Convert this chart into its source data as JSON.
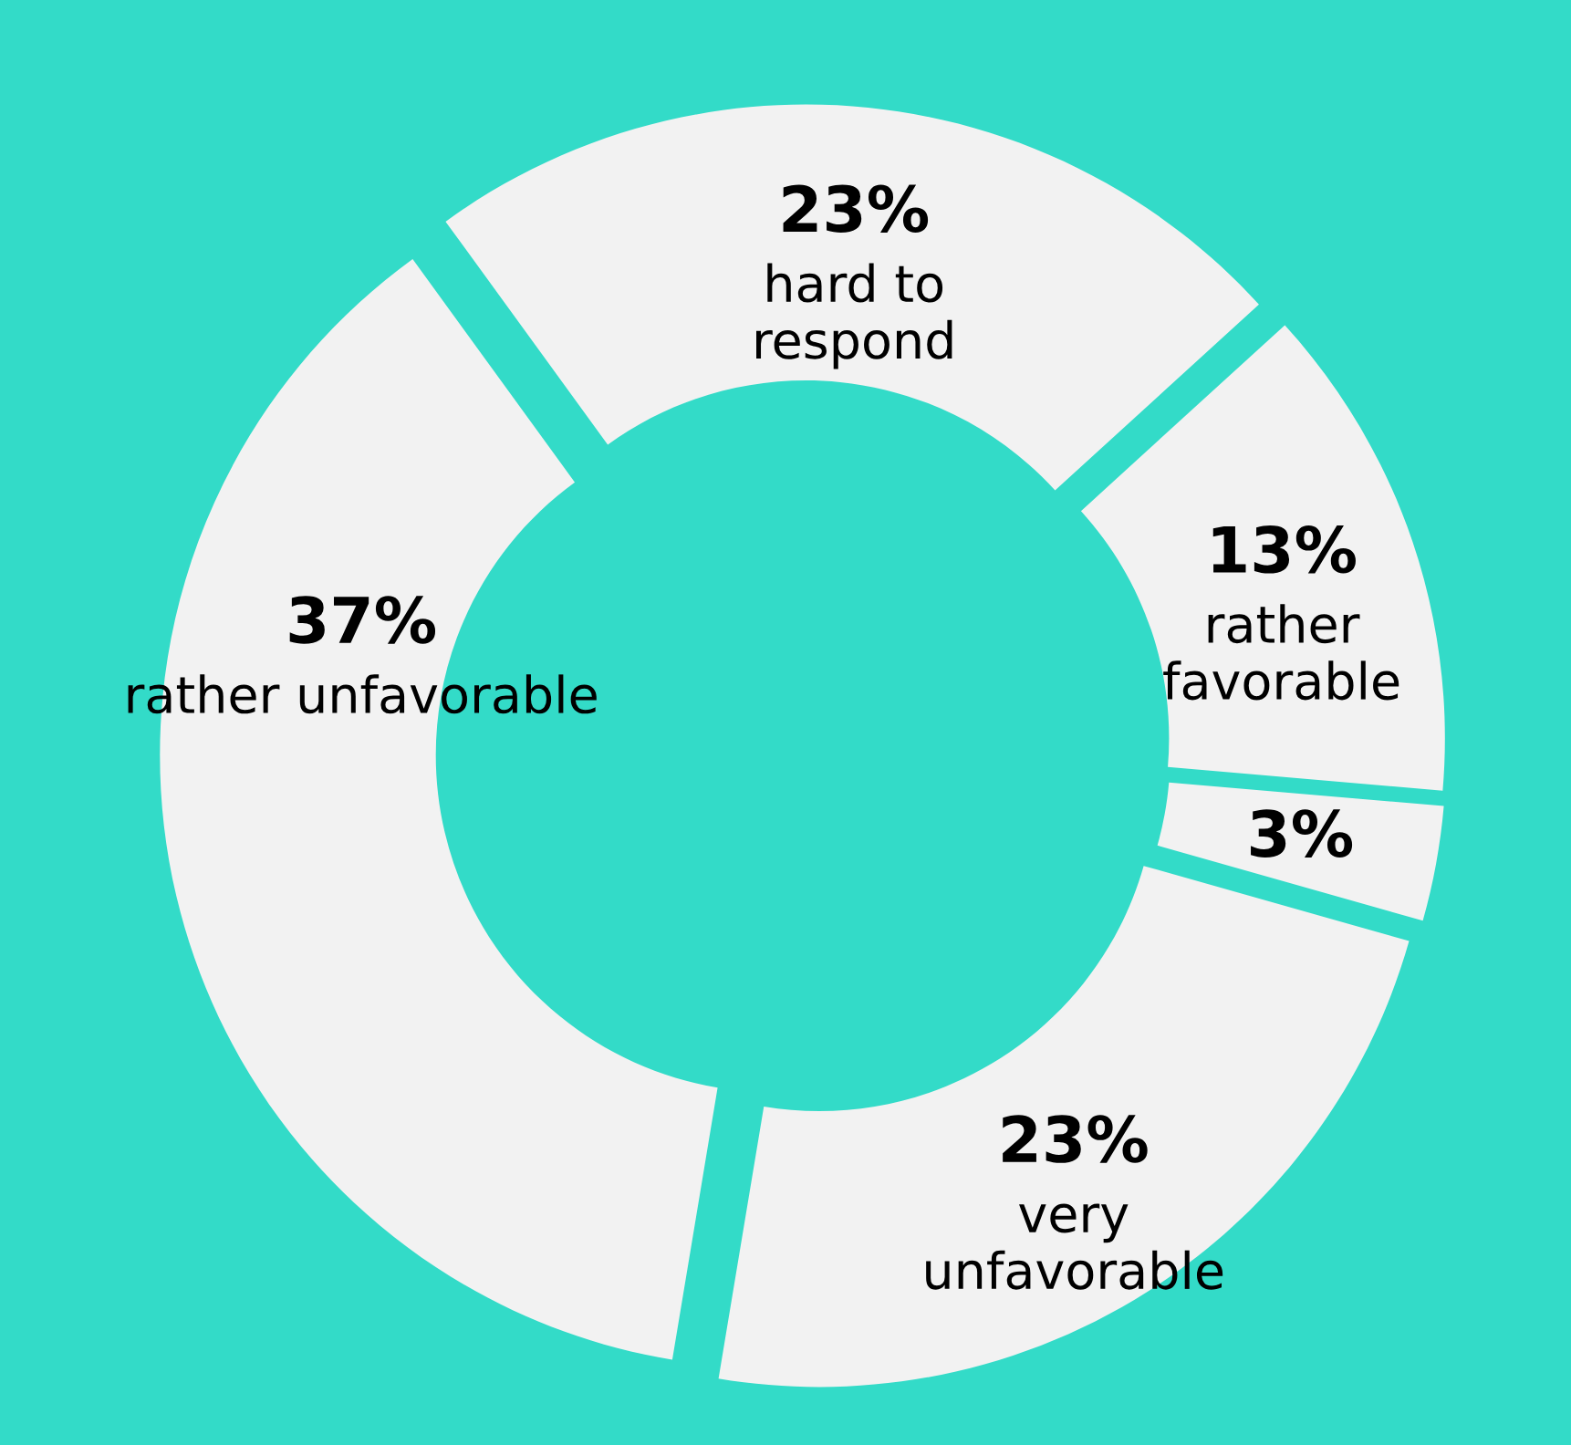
{
  "chart_data": {
    "type": "donut",
    "categories": [
      "hard to\nrespond",
      "rather\nfavorable",
      null,
      "very\nunfavorable",
      "rather unfavorable"
    ],
    "values": [
      23,
      13,
      3,
      23,
      37
    ],
    "value_labels": [
      "23%",
      "13%",
      "3%",
      "23%",
      "37%"
    ],
    "colors": [
      "#f2f2f2",
      "#f2f2f2",
      "#f2f2f2",
      "#f2f2f2",
      "#f2f2f2"
    ],
    "legend": false
  }
}
